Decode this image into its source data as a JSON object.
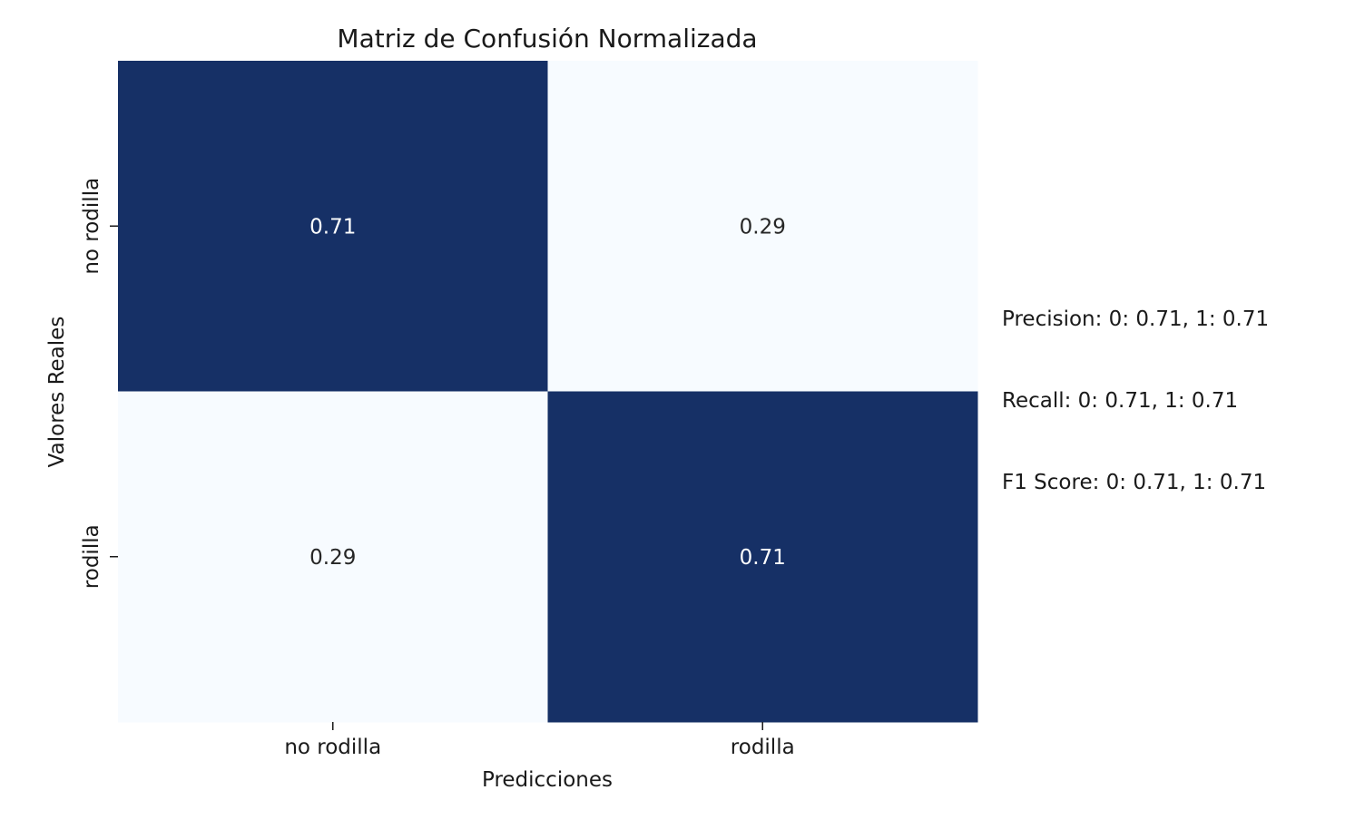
{
  "chart_data": {
    "type": "heatmap",
    "title": "Matriz de Confusión Normalizada",
    "xlabel": "Predicciones",
    "ylabel": "Valores Reales",
    "x_categories": [
      "no rodilla",
      "rodilla"
    ],
    "y_categories": [
      "no rodilla",
      "rodilla"
    ],
    "values": [
      [
        0.71,
        0.29
      ],
      [
        0.29,
        0.71
      ]
    ],
    "value_labels": [
      [
        "0.71",
        "0.29"
      ],
      [
        "0.29",
        "0.71"
      ]
    ],
    "value_range": [
      0,
      1
    ],
    "colormap": {
      "low": "#f7fbff",
      "high": "#163066"
    },
    "colorbar": false,
    "annotations": [
      "Precision: 0: 0.71, 1: 0.71",
      "Recall: 0: 0.71, 1: 0.71",
      "F1 Score: 0: 0.71, 1: 0.71"
    ]
  }
}
